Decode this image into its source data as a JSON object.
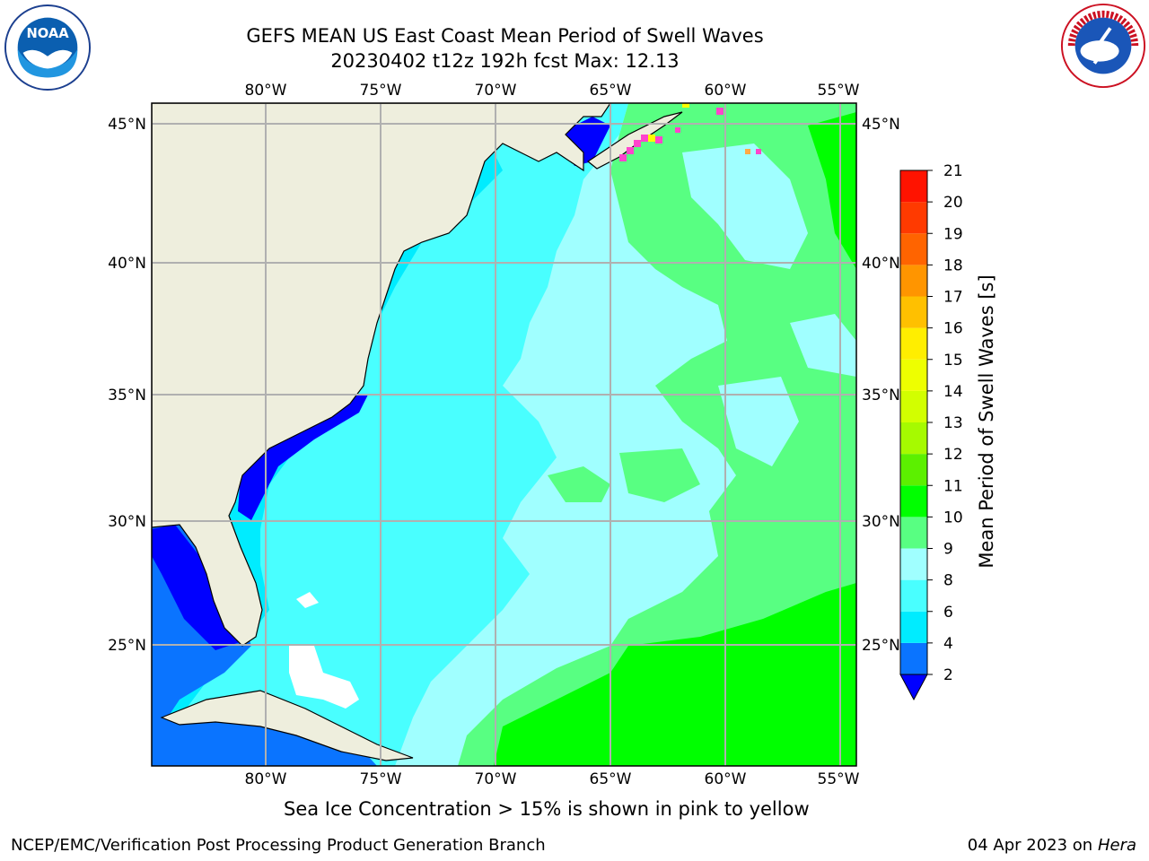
{
  "title_line1": "GEFS MEAN US East Coast Mean Period of Swell Waves",
  "title_line2": "20230402 t12z 192h fcst   Max: 12.13",
  "lon_ticks": [
    "80°W",
    "75°W",
    "70°W",
    "65°W",
    "60°W",
    "55°W"
  ],
  "lat_ticks": [
    "45°N",
    "40°N",
    "35°N",
    "30°N",
    "25°N"
  ],
  "colorbar": {
    "label": "Mean Period of Swell Waves [s]",
    "ticks": [
      "2",
      "4",
      "6",
      "8",
      "9",
      "10",
      "11",
      "12",
      "13",
      "14",
      "15",
      "16",
      "17",
      "18",
      "19",
      "20",
      "21"
    ],
    "colors": [
      "#0a74ff",
      "#00ecff",
      "#49ffff",
      "#a0ffff",
      "#58ff82",
      "#00ff00",
      "#5cf000",
      "#a6fa00",
      "#d2ff00",
      "#eeff00",
      "#ffee00",
      "#ffc000",
      "#ff9500",
      "#ff6400",
      "#ff3a00",
      "#ff1300"
    ],
    "extend_color": "#0000ff"
  },
  "caption": "Sea Ice Concentration > 15% is shown in pink to yellow",
  "footer_left": "NCEP/EMC/Verification Post Processing Product Generation Branch",
  "footer_date": "04 Apr 2023 on ",
  "footer_host": "Hera",
  "logos": {
    "left": "NOAA",
    "right": "NATIONAL WEATHER SERVICE"
  }
}
